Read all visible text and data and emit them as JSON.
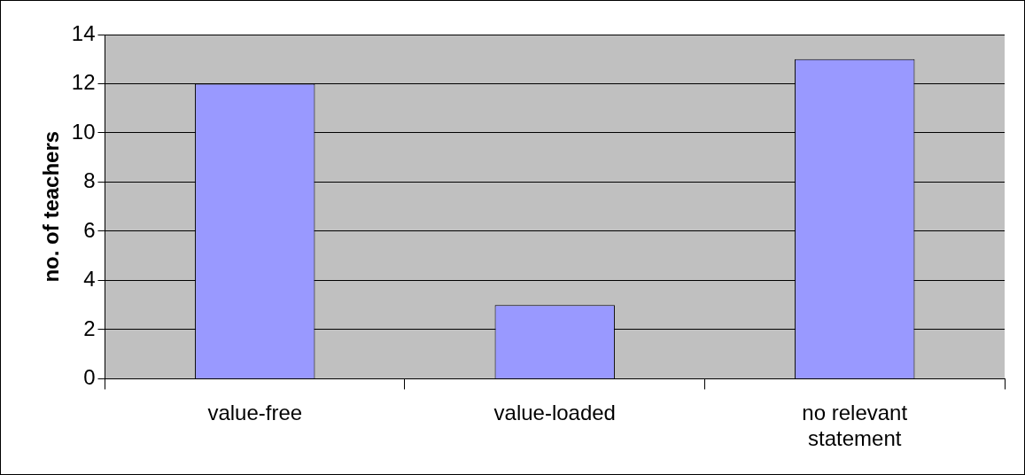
{
  "chart_data": {
    "type": "bar",
    "ylabel": "no. of teachers",
    "categories": [
      "value-free",
      "value-loaded",
      "no relevant statement"
    ],
    "values": [
      12,
      3,
      13
    ],
    "color": "#9999ff",
    "ylim": [
      0,
      14
    ],
    "yticks": [
      0,
      2,
      4,
      6,
      8,
      10,
      12,
      14
    ],
    "grid": "y",
    "legend": false
  }
}
